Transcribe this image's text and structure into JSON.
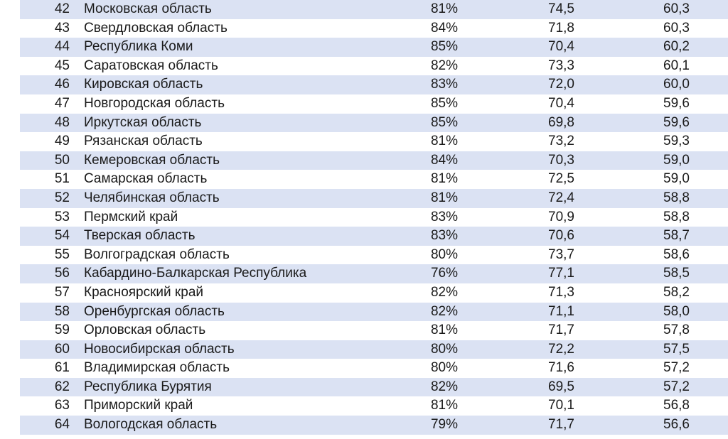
{
  "table": {
    "rows": [
      {
        "rank": "42",
        "region": "Московская область",
        "pct": "81%",
        "v1": "74,5",
        "v2": "60,3"
      },
      {
        "rank": "43",
        "region": "Свердловская область",
        "pct": "84%",
        "v1": "71,8",
        "v2": "60,3"
      },
      {
        "rank": "44",
        "region": "Республика Коми",
        "pct": "85%",
        "v1": "70,4",
        "v2": "60,2"
      },
      {
        "rank": "45",
        "region": "Саратовская область",
        "pct": "82%",
        "v1": "73,3",
        "v2": "60,1"
      },
      {
        "rank": "46",
        "region": "Кировская область",
        "pct": "83%",
        "v1": "72,0",
        "v2": "60,0"
      },
      {
        "rank": "47",
        "region": "Новгородская область",
        "pct": "85%",
        "v1": "70,4",
        "v2": "59,6"
      },
      {
        "rank": "48",
        "region": "Иркутская область",
        "pct": "85%",
        "v1": "69,8",
        "v2": "59,6"
      },
      {
        "rank": "49",
        "region": "Рязанская область",
        "pct": "81%",
        "v1": "73,2",
        "v2": "59,3"
      },
      {
        "rank": "50",
        "region": "Кемеровская область",
        "pct": "84%",
        "v1": "70,3",
        "v2": "59,0"
      },
      {
        "rank": "51",
        "region": "Самарская область",
        "pct": "81%",
        "v1": "72,5",
        "v2": "59,0"
      },
      {
        "rank": "52",
        "region": "Челябинская область",
        "pct": "81%",
        "v1": "72,4",
        "v2": "58,8"
      },
      {
        "rank": "53",
        "region": "Пермский край",
        "pct": "83%",
        "v1": "70,9",
        "v2": "58,8"
      },
      {
        "rank": "54",
        "region": "Тверская область",
        "pct": "83%",
        "v1": "70,6",
        "v2": "58,7"
      },
      {
        "rank": "55",
        "region": "Волгоградская область",
        "pct": "80%",
        "v1": "73,7",
        "v2": "58,6"
      },
      {
        "rank": "56",
        "region": "Кабардино-Балкарская Республика",
        "pct": "76%",
        "v1": "77,1",
        "v2": "58,5"
      },
      {
        "rank": "57",
        "region": "Красноярский край",
        "pct": "82%",
        "v1": "71,3",
        "v2": "58,2"
      },
      {
        "rank": "58",
        "region": "Оренбургская область",
        "pct": "82%",
        "v1": "71,1",
        "v2": "58,0"
      },
      {
        "rank": "59",
        "region": "Орловская область",
        "pct": "81%",
        "v1": "71,7",
        "v2": "57,8"
      },
      {
        "rank": "60",
        "region": "Новосибирская область",
        "pct": "80%",
        "v1": "72,2",
        "v2": "57,5"
      },
      {
        "rank": "61",
        "region": "Владимирская область",
        "pct": "80%",
        "v1": "71,6",
        "v2": "57,2"
      },
      {
        "rank": "62",
        "region": "Республика Бурятия",
        "pct": "82%",
        "v1": "69,5",
        "v2": "57,2"
      },
      {
        "rank": "63",
        "region": "Приморский край",
        "pct": "81%",
        "v1": "70,1",
        "v2": "56,8"
      },
      {
        "rank": "64",
        "region": "Вологодская область",
        "pct": "79%",
        "v1": "71,7",
        "v2": "56,6"
      }
    ]
  }
}
